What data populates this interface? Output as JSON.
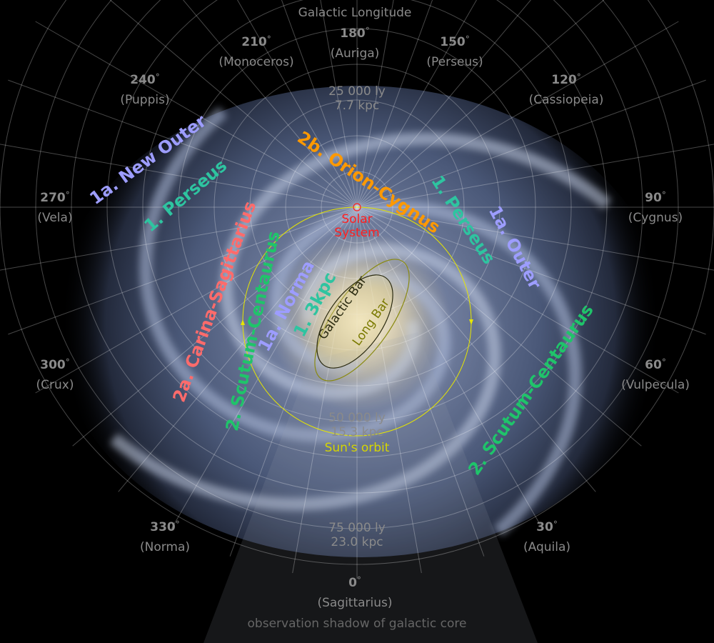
{
  "title": "Galactic Longitude",
  "longitude_labels": [
    {
      "deg": "180",
      "constellation": "(Auriga)"
    },
    {
      "deg": "150",
      "constellation": "(Perseus)"
    },
    {
      "deg": "120",
      "constellation": "(Cassiopeia)"
    },
    {
      "deg": "90",
      "constellation": "(Cygnus)"
    },
    {
      "deg": "60",
      "constellation": "(Vulpecula)"
    },
    {
      "deg": "30",
      "constellation": "(Aquila)"
    },
    {
      "deg": "0",
      "constellation": "(Sagittarius)"
    },
    {
      "deg": "330",
      "constellation": "(Norma)"
    },
    {
      "deg": "300",
      "constellation": "(Crux)"
    },
    {
      "deg": "270",
      "constellation": "(Vela)"
    },
    {
      "deg": "240",
      "constellation": "(Puppis)"
    },
    {
      "deg": "210",
      "constellation": "(Monoceros)"
    }
  ],
  "degree_symbol": "°",
  "distances": [
    {
      "ly": "25 000 ly",
      "kpc": "7.7 kpc"
    },
    {
      "ly": "50 000 ly",
      "kpc": "15.3 kpc"
    },
    {
      "ly": "75 000 ly",
      "kpc": "23.0 kpc"
    }
  ],
  "arms": {
    "new_outer": "1a. New Outer",
    "perseus_left": "1. Perseus",
    "orion_cygnus": "2b. Orion-Cygnus",
    "perseus_right": "1. Perseus",
    "outer": "1a. Outer",
    "carina_sagittarius": "2a. Carina-Sagittarius",
    "scutum_left": "2. Scutum-Centaurus",
    "norma": "1a. Norma",
    "three_kpc": "1. 3kpc",
    "scutum_right": "2. Scutum-Centaurus",
    "galactic_bar": "Galactic Bar",
    "long_bar": "Long Bar"
  },
  "solar_system": {
    "line1": "Solar",
    "line2": "System"
  },
  "suns_orbit": "Sun's orbit",
  "shadow_label": "observation shadow of galactic core",
  "colors": {
    "lavender": "#9d9dff",
    "teal": "#2ec4a0",
    "orange": "#ff9900",
    "salmon": "#ff6b6b",
    "green": "#1fc46a",
    "sun": "#ff2020",
    "orbit": "#e6e600",
    "grey": "#8a8a8a"
  }
}
